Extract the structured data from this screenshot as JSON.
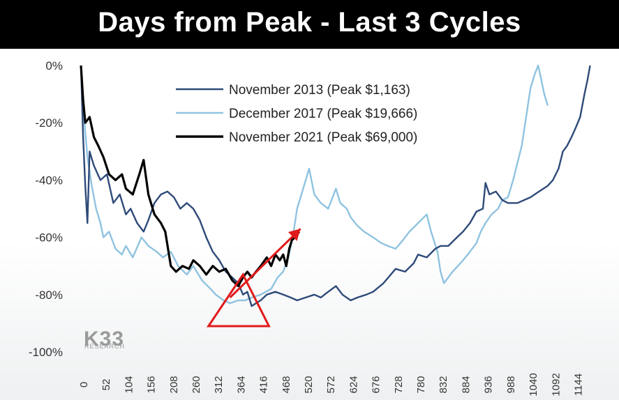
{
  "title": "Days from Peak - Last 3 Cycles",
  "logo": {
    "main": "K33",
    "sub": "RESEARCH"
  },
  "colors": {
    "title_bg": "#000000",
    "title_text": "#ffffff",
    "nov2013": "#2e4a78",
    "dec2017": "#8fc3e0",
    "nov2021": "#000000",
    "annotation": "#e11a1a"
  },
  "chart_data": {
    "type": "line",
    "title": "Days from Peak - Last 3 Cycles",
    "xlabel": "",
    "ylabel": "",
    "xlim": [
      0,
      1190
    ],
    "ylim": [
      -100,
      0
    ],
    "x_ticks": [
      0,
      52,
      104,
      156,
      208,
      260,
      312,
      364,
      416,
      468,
      520,
      572,
      624,
      676,
      728,
      780,
      832,
      884,
      936,
      988,
      1040,
      1092,
      1144
    ],
    "y_ticks": [
      0,
      -20,
      -40,
      -60,
      -80,
      -100
    ],
    "y_tick_labels": [
      "0%",
      "-20%",
      "-40%",
      "-60%",
      "-80%",
      "-100%"
    ],
    "grid": false,
    "legend_position": "top-center",
    "series": [
      {
        "name": "November 2013 (Peak $1,163)",
        "color": "#2e4a78",
        "points": [
          [
            0,
            0
          ],
          [
            5,
            -25
          ],
          [
            10,
            -42
          ],
          [
            15,
            -55
          ],
          [
            20,
            -30
          ],
          [
            30,
            -35
          ],
          [
            45,
            -40
          ],
          [
            60,
            -38
          ],
          [
            75,
            -48
          ],
          [
            90,
            -45
          ],
          [
            104,
            -52
          ],
          [
            115,
            -50
          ],
          [
            130,
            -55
          ],
          [
            145,
            -58
          ],
          [
            156,
            -54
          ],
          [
            170,
            -48
          ],
          [
            185,
            -45
          ],
          [
            200,
            -44
          ],
          [
            215,
            -46
          ],
          [
            230,
            -50
          ],
          [
            245,
            -48
          ],
          [
            260,
            -50
          ],
          [
            275,
            -54
          ],
          [
            290,
            -60
          ],
          [
            305,
            -65
          ],
          [
            320,
            -68
          ],
          [
            335,
            -72
          ],
          [
            350,
            -74
          ],
          [
            364,
            -76
          ],
          [
            375,
            -80
          ],
          [
            385,
            -79
          ],
          [
            395,
            -84
          ],
          [
            405,
            -83
          ],
          [
            416,
            -82
          ],
          [
            430,
            -80
          ],
          [
            450,
            -79
          ],
          [
            468,
            -80
          ],
          [
            485,
            -81
          ],
          [
            500,
            -82
          ],
          [
            520,
            -81
          ],
          [
            540,
            -80
          ],
          [
            555,
            -81
          ],
          [
            572,
            -79
          ],
          [
            590,
            -77
          ],
          [
            605,
            -80
          ],
          [
            624,
            -82
          ],
          [
            640,
            -81
          ],
          [
            660,
            -80
          ],
          [
            676,
            -79
          ],
          [
            700,
            -76
          ],
          [
            728,
            -71
          ],
          [
            750,
            -72
          ],
          [
            770,
            -69
          ],
          [
            780,
            -66
          ],
          [
            800,
            -67
          ],
          [
            820,
            -64
          ],
          [
            832,
            -63
          ],
          [
            850,
            -63
          ],
          [
            870,
            -60
          ],
          [
            884,
            -58
          ],
          [
            900,
            -55
          ],
          [
            915,
            -51
          ],
          [
            930,
            -50
          ],
          [
            936,
            -41
          ],
          [
            945,
            -45
          ],
          [
            960,
            -44
          ],
          [
            975,
            -47
          ],
          [
            988,
            -48
          ],
          [
            1010,
            -48
          ],
          [
            1040,
            -46
          ],
          [
            1060,
            -44
          ],
          [
            1080,
            -42
          ],
          [
            1092,
            -40
          ],
          [
            1105,
            -36
          ],
          [
            1115,
            -30
          ],
          [
            1125,
            -28
          ],
          [
            1135,
            -25
          ],
          [
            1144,
            -22
          ],
          [
            1155,
            -18
          ],
          [
            1165,
            -10
          ],
          [
            1172,
            -5
          ],
          [
            1178,
            0
          ]
        ]
      },
      {
        "name": "December 2017 (Peak $19,666)",
        "color": "#8fc3e0",
        "points": [
          [
            0,
            0
          ],
          [
            8,
            -20
          ],
          [
            15,
            -32
          ],
          [
            25,
            -42
          ],
          [
            35,
            -50
          ],
          [
            45,
            -55
          ],
          [
            52,
            -60
          ],
          [
            65,
            -58
          ],
          [
            80,
            -64
          ],
          [
            95,
            -66
          ],
          [
            104,
            -63
          ],
          [
            120,
            -67
          ],
          [
            140,
            -60
          ],
          [
            156,
            -63
          ],
          [
            175,
            -65
          ],
          [
            190,
            -67
          ],
          [
            208,
            -65
          ],
          [
            225,
            -70
          ],
          [
            245,
            -73
          ],
          [
            260,
            -70
          ],
          [
            280,
            -75
          ],
          [
            300,
            -78
          ],
          [
            312,
            -80
          ],
          [
            330,
            -82
          ],
          [
            345,
            -83
          ],
          [
            364,
            -82
          ],
          [
            380,
            -82
          ],
          [
            395,
            -81
          ],
          [
            416,
            -80
          ],
          [
            440,
            -78
          ],
          [
            455,
            -74
          ],
          [
            468,
            -72
          ],
          [
            480,
            -67
          ],
          [
            490,
            -60
          ],
          [
            500,
            -50
          ],
          [
            510,
            -45
          ],
          [
            520,
            -40
          ],
          [
            528,
            -36
          ],
          [
            540,
            -45
          ],
          [
            555,
            -48
          ],
          [
            572,
            -50
          ],
          [
            590,
            -43
          ],
          [
            600,
            -48
          ],
          [
            615,
            -50
          ],
          [
            624,
            -53
          ],
          [
            640,
            -56
          ],
          [
            655,
            -58
          ],
          [
            676,
            -60
          ],
          [
            695,
            -62
          ],
          [
            710,
            -63
          ],
          [
            728,
            -64
          ],
          [
            745,
            -61
          ],
          [
            760,
            -58
          ],
          [
            780,
            -55
          ],
          [
            800,
            -52
          ],
          [
            810,
            -58
          ],
          [
            825,
            -65
          ],
          [
            832,
            -72
          ],
          [
            840,
            -76
          ],
          [
            860,
            -72
          ],
          [
            884,
            -68
          ],
          [
            900,
            -65
          ],
          [
            915,
            -62
          ],
          [
            925,
            -58
          ],
          [
            936,
            -55
          ],
          [
            950,
            -52
          ],
          [
            965,
            -50
          ],
          [
            975,
            -47
          ],
          [
            988,
            -46
          ],
          [
            1000,
            -40
          ],
          [
            1010,
            -34
          ],
          [
            1020,
            -28
          ],
          [
            1030,
            -18
          ],
          [
            1040,
            -8
          ],
          [
            1050,
            -3
          ],
          [
            1058,
            0
          ],
          [
            1065,
            -5
          ],
          [
            1072,
            -10
          ],
          [
            1080,
            -14
          ]
        ]
      },
      {
        "name": "November 2021 (Peak $69,000)",
        "color": "#000000",
        "points": [
          [
            0,
            0
          ],
          [
            5,
            -12
          ],
          [
            10,
            -20
          ],
          [
            20,
            -18
          ],
          [
            30,
            -25
          ],
          [
            40,
            -28
          ],
          [
            52,
            -32
          ],
          [
            65,
            -38
          ],
          [
            80,
            -40
          ],
          [
            95,
            -38
          ],
          [
            104,
            -43
          ],
          [
            120,
            -45
          ],
          [
            135,
            -38
          ],
          [
            145,
            -33
          ],
          [
            156,
            -45
          ],
          [
            170,
            -52
          ],
          [
            185,
            -55
          ],
          [
            195,
            -58
          ],
          [
            208,
            -70
          ],
          [
            220,
            -72
          ],
          [
            235,
            -70
          ],
          [
            250,
            -71
          ],
          [
            260,
            -68
          ],
          [
            275,
            -70
          ],
          [
            290,
            -73
          ],
          [
            305,
            -70
          ],
          [
            320,
            -72
          ],
          [
            335,
            -71
          ],
          [
            350,
            -75
          ],
          [
            364,
            -77
          ],
          [
            375,
            -74
          ],
          [
            385,
            -72
          ],
          [
            395,
            -74
          ],
          [
            405,
            -72
          ],
          [
            416,
            -70
          ],
          [
            430,
            -67
          ],
          [
            440,
            -70
          ],
          [
            450,
            -66
          ],
          [
            460,
            -68
          ],
          [
            468,
            -66
          ],
          [
            475,
            -70
          ],
          [
            482,
            -64
          ],
          [
            488,
            -61
          ],
          [
            495,
            -60
          ],
          [
            505,
            -58
          ]
        ]
      }
    ],
    "annotations": [
      {
        "type": "triangle",
        "color": "#e11a1a",
        "x": [
          295,
          375,
          435
        ],
        "y": [
          -91,
          -73,
          -91
        ]
      },
      {
        "type": "arrow",
        "color": "#e11a1a",
        "x": [
          345,
          508
        ],
        "y": [
          -81,
          -57
        ]
      }
    ]
  }
}
